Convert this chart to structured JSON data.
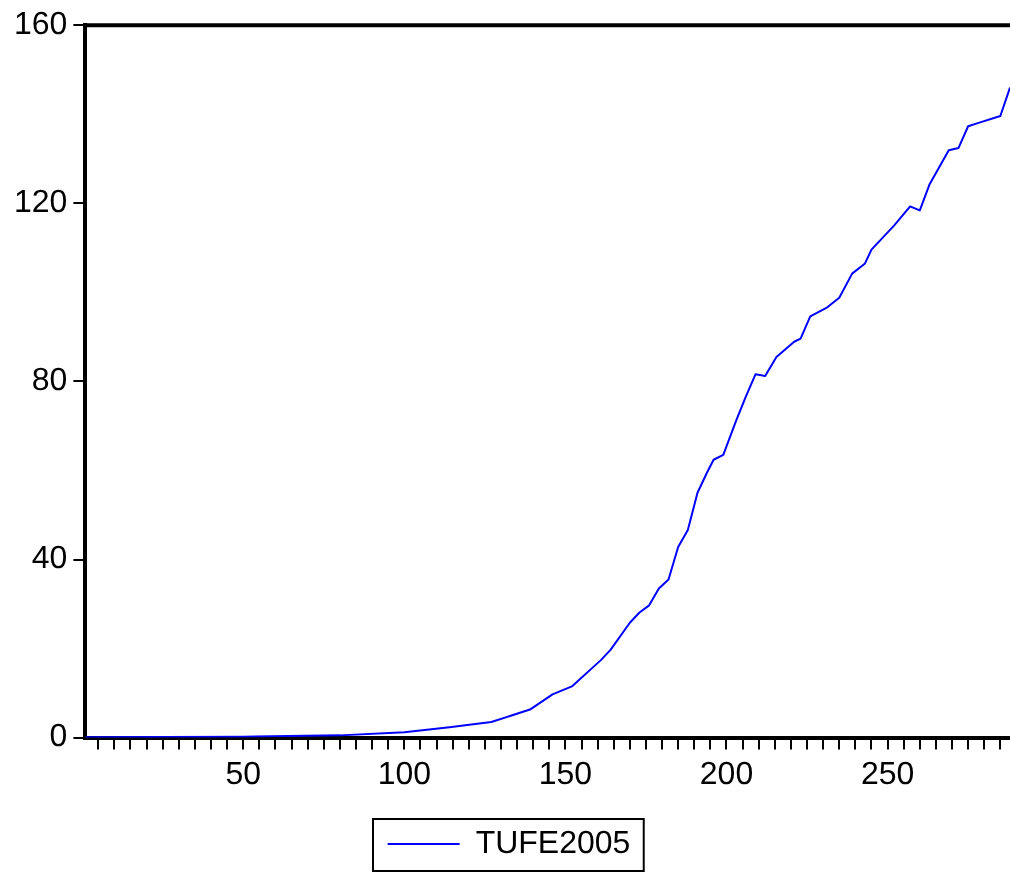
{
  "chart_data": {
    "type": "line",
    "x": [
      1,
      50,
      80,
      100,
      114,
      127,
      139,
      146,
      152,
      161,
      164,
      170,
      173,
      176,
      179,
      182,
      185,
      188,
      191,
      194,
      196,
      199,
      203,
      206,
      209,
      212,
      215.5,
      221,
      223,
      226,
      231,
      235,
      239,
      243,
      245,
      252,
      257,
      260,
      263,
      269,
      272,
      275,
      278,
      285,
      288
    ],
    "series": [
      {
        "name": "TUFE2005",
        "color": "#0000ff",
        "values": [
          0.1,
          0.2,
          0.5,
          1.2,
          2.3,
          3.5,
          6.3,
          9.7,
          11.5,
          17.4,
          19.7,
          25.8,
          28.1,
          29.7,
          33.5,
          35.5,
          42.8,
          46.6,
          55,
          59.6,
          62.4,
          63.5,
          71.2,
          76.6,
          81.6,
          81.2,
          85.5,
          88.9,
          89.6,
          94.6,
          96.5,
          98.8,
          104.2,
          106.5,
          109.6,
          115,
          119.3,
          118.4,
          124.2,
          131.9,
          132.4,
          137.3,
          138,
          139.6,
          146
        ]
      }
    ],
    "xlim": [
      1,
      288
    ],
    "xticks": [
      {
        "value": 5,
        "label": null
      },
      {
        "value": 10,
        "label": null
      },
      {
        "value": 15,
        "label": null
      },
      {
        "value": 20,
        "label": null
      },
      {
        "value": 25,
        "label": null
      },
      {
        "value": 30,
        "label": null
      },
      {
        "value": 35,
        "label": null
      },
      {
        "value": 40,
        "label": null
      },
      {
        "value": 45,
        "label": null
      },
      50,
      {
        "value": 55,
        "label": null
      },
      {
        "value": 60,
        "label": null
      },
      {
        "value": 65,
        "label": null
      },
      {
        "value": 70,
        "label": null
      },
      {
        "value": 75,
        "label": null
      },
      {
        "value": 80,
        "label": null
      },
      {
        "value": 85,
        "label": null
      },
      {
        "value": 90,
        "label": null
      },
      {
        "value": 95,
        "label": null
      },
      100,
      {
        "value": 105,
        "label": null
      },
      {
        "value": 110,
        "label": null
      },
      {
        "value": 115,
        "label": null
      },
      {
        "value": 120,
        "label": null
      },
      {
        "value": 125,
        "label": null
      },
      {
        "value": 130,
        "label": null
      },
      {
        "value": 135,
        "label": null
      },
      {
        "value": 140,
        "label": null
      },
      {
        "value": 145,
        "label": null
      },
      150,
      {
        "value": 155,
        "label": null
      },
      {
        "value": 160,
        "label": null
      },
      {
        "value": 165,
        "label": null
      },
      {
        "value": 170,
        "label": null
      },
      {
        "value": 175,
        "label": null
      },
      {
        "value": 180,
        "label": null
      },
      {
        "value": 185,
        "label": null
      },
      {
        "value": 190,
        "label": null
      },
      {
        "value": 195,
        "label": null
      },
      200,
      {
        "value": 205,
        "label": null
      },
      {
        "value": 210,
        "label": null
      },
      {
        "value": 215,
        "label": null
      },
      {
        "value": 220,
        "label": null
      },
      {
        "value": 225,
        "label": null
      },
      {
        "value": 230,
        "label": null
      },
      {
        "value": 235,
        "label": null
      },
      {
        "value": 240,
        "label": null
      },
      {
        "value": 245,
        "label": null
      },
      250,
      {
        "value": 255,
        "label": null
      },
      {
        "value": 260,
        "label": null
      },
      {
        "value": 265,
        "label": null
      },
      {
        "value": 270,
        "label": null
      },
      {
        "value": 275,
        "label": null
      },
      {
        "value": 280,
        "label": null
      },
      {
        "value": 285,
        "label": null
      }
    ],
    "ylim": [
      0,
      160
    ],
    "yticks": [
      0,
      40,
      80,
      120,
      160
    ],
    "grid": false,
    "legend": "bottom",
    "marker": "none",
    "line_style": "solid"
  }
}
